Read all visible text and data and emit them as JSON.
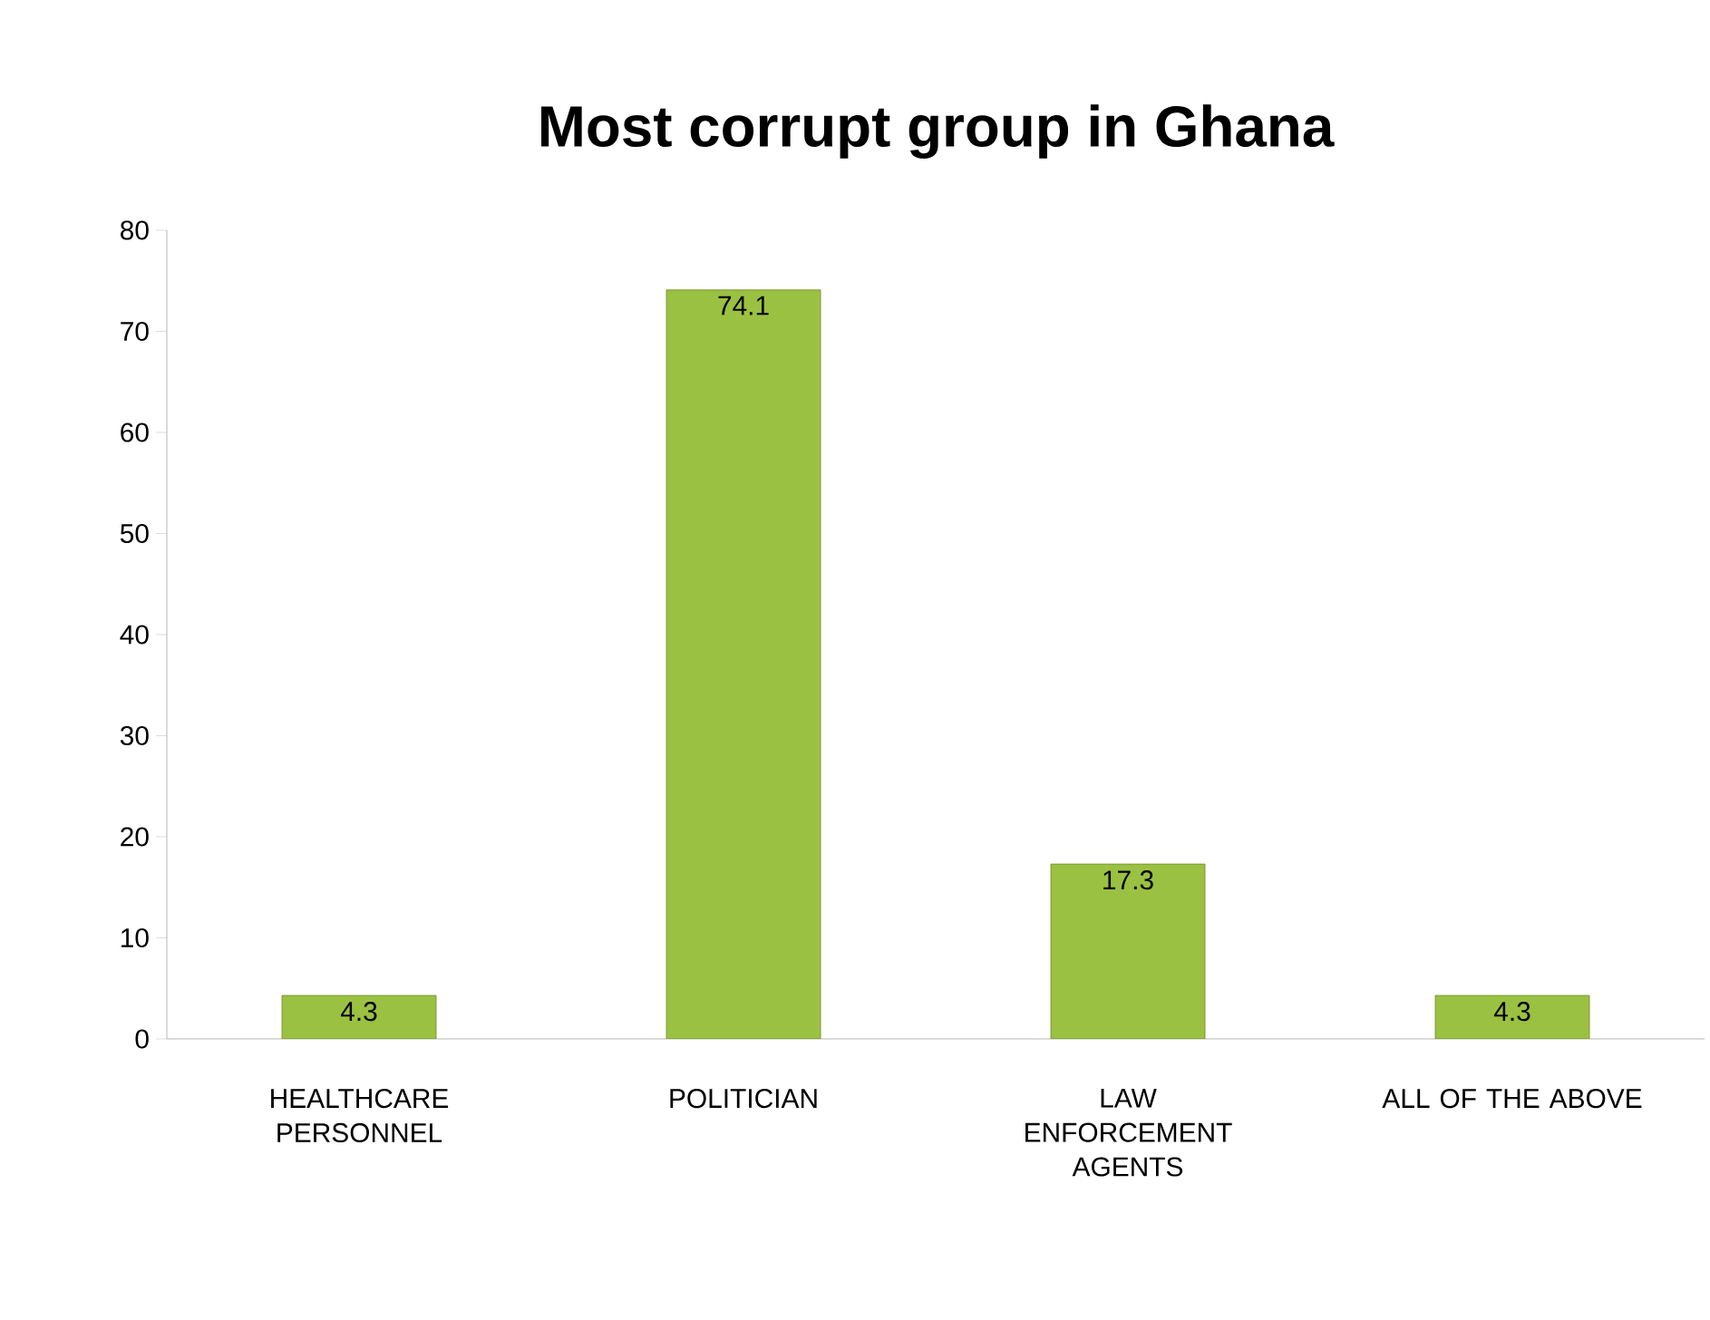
{
  "chart_data": {
    "type": "bar",
    "title": "Most corrupt group in Ghana",
    "categories": [
      "HEALTHCARE PERSONNEL",
      "POLITICIAN",
      "LAW ENFORCEMENT AGENTS",
      "ALL OF THE ABOVE"
    ],
    "values": [
      4.3,
      74.1,
      17.3,
      4.3
    ],
    "color": "#9bc142",
    "ylim": [
      0,
      80
    ],
    "yticks": [
      0,
      10,
      20,
      30,
      40,
      50,
      60,
      70,
      80
    ],
    "grid": false,
    "data_labels": true
  }
}
